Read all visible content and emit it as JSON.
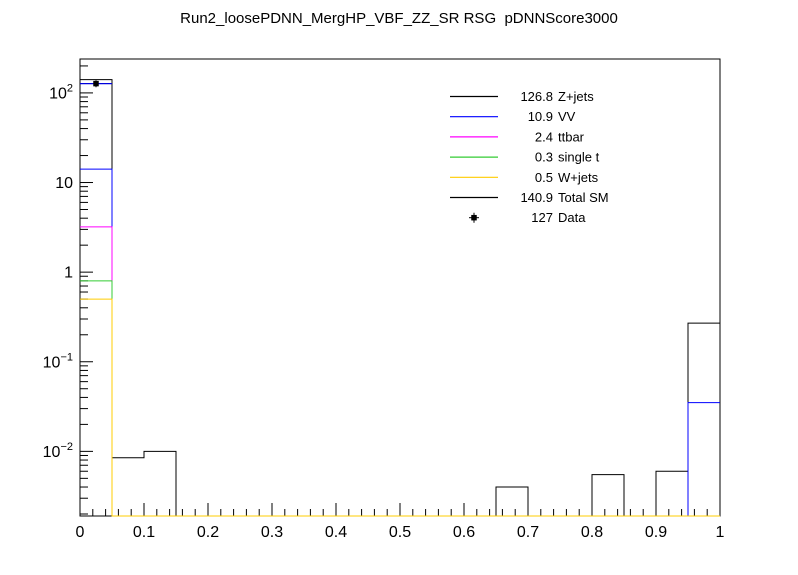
{
  "chart_data": {
    "type": "step-histogram",
    "title": "Run2_loosePDNN_MergHP_VBF_ZZ_SR RSG  pDNNScore3000",
    "xlabel": "",
    "ylabel": "",
    "yscale": "log",
    "xlim": [
      0,
      1
    ],
    "ylim": [
      0.0019,
      239
    ],
    "bin_width": 0.05,
    "n_bins": 20,
    "grid": false,
    "legend_position": "upper-right",
    "x_ticks": [
      {
        "v": 0.0,
        "label": "0"
      },
      {
        "v": 0.1,
        "label": "0.1"
      },
      {
        "v": 0.2,
        "label": "0.2"
      },
      {
        "v": 0.3,
        "label": "0.3"
      },
      {
        "v": 0.4,
        "label": "0.4"
      },
      {
        "v": 0.5,
        "label": "0.5"
      },
      {
        "v": 0.6,
        "label": "0.6"
      },
      {
        "v": 0.7,
        "label": "0.7"
      },
      {
        "v": 0.8,
        "label": "0.8"
      },
      {
        "v": 0.9,
        "label": "0.9"
      },
      {
        "v": 1.0,
        "label": "1"
      }
    ],
    "x_minor_step": 0.02,
    "y_ticks": [
      {
        "v": 0.01,
        "base": "10",
        "exp": "−2"
      },
      {
        "v": 0.1,
        "base": "10",
        "exp": "−1"
      },
      {
        "v": 1,
        "base": "1",
        "exp": ""
      },
      {
        "v": 10,
        "base": "10",
        "exp": ""
      },
      {
        "v": 100,
        "base": "10",
        "exp": "2"
      }
    ],
    "series": [
      {
        "name": "total-sm-and-zjets-stack-top",
        "legend_label": "Total SM",
        "color": "#000000",
        "values": [
          140.9,
          0.0085,
          0.01,
          0,
          0,
          0,
          0,
          0,
          0,
          0,
          0,
          0,
          0,
          0.004,
          0,
          0,
          0.0055,
          0,
          0.006,
          0.27
        ]
      },
      {
        "name": "vv-stack-boundary",
        "legend_label": "VV",
        "color": "#0000ff",
        "values": [
          14.1,
          0,
          0,
          0,
          0,
          0,
          0,
          0,
          0,
          0,
          0,
          0,
          0,
          0,
          0,
          0,
          0,
          0,
          0,
          0.035
        ]
      },
      {
        "name": "ttbar-stack-boundary",
        "legend_label": "ttbar",
        "color": "#ff00ff",
        "values": [
          3.2,
          0,
          0,
          0,
          0,
          0,
          0,
          0,
          0,
          0,
          0,
          0,
          0,
          0,
          0,
          0,
          0,
          0,
          0,
          0
        ]
      },
      {
        "name": "single-t-stack-boundary",
        "legend_label": "single t",
        "color": "#33cc33",
        "values": [
          0.8,
          0,
          0,
          0,
          0,
          0,
          0,
          0,
          0,
          0,
          0,
          0,
          0,
          0,
          0,
          0,
          0,
          0,
          0,
          0
        ]
      },
      {
        "name": "w-jets-stack-boundary",
        "legend_label": "W+jets",
        "color": "#ffcc00",
        "values": [
          0.5,
          0,
          0,
          0,
          0,
          0,
          0,
          0,
          0,
          0,
          0,
          0,
          0,
          0,
          0,
          0,
          0,
          0,
          0,
          0
        ]
      }
    ],
    "data_points": [
      {
        "x": 0.025,
        "y": 127,
        "yerr": 11.3
      }
    ],
    "data_marker_color": "#000000",
    "data_hline_color": "#0000dd",
    "legend": {
      "items": [
        {
          "value": "126.8",
          "label": "Z+jets",
          "color": "#000000",
          "style": "line"
        },
        {
          "value": "10.9",
          "label": "VV",
          "color": "#0000ff",
          "style": "line"
        },
        {
          "value": "2.4",
          "label": "ttbar",
          "color": "#ff00ff",
          "style": "line"
        },
        {
          "value": "0.3",
          "label": "single t",
          "color": "#33cc33",
          "style": "line"
        },
        {
          "value": "0.5",
          "label": "W+jets",
          "color": "#ffcc00",
          "style": "line"
        },
        {
          "value": "140.9",
          "label": "Total SM",
          "color": "#000000",
          "style": "line"
        },
        {
          "value": "127",
          "label": "Data",
          "color": "#000000",
          "style": "marker"
        }
      ]
    }
  }
}
